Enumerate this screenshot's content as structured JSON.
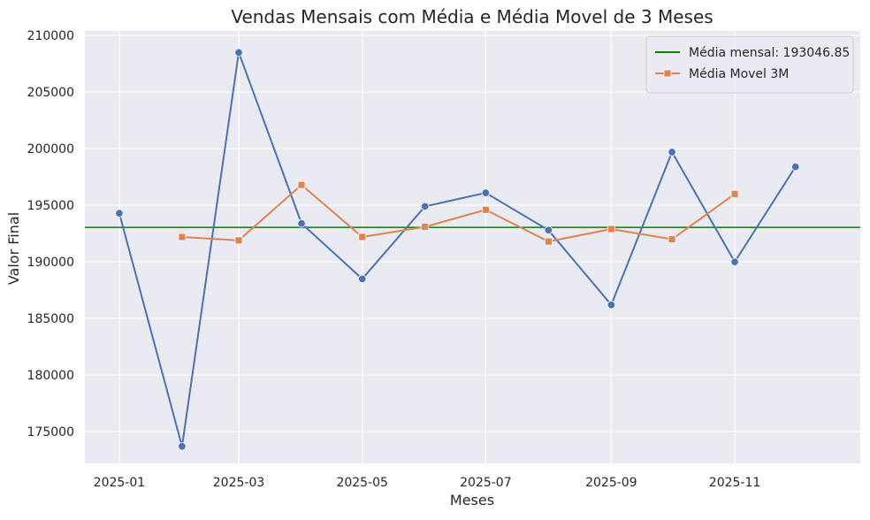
{
  "chart_data": {
    "type": "line",
    "title": "Vendas Mensais com Média e Média Movel de 3 Meses",
    "xlabel": "Meses",
    "ylabel": "Valor Final",
    "x": [
      "2025-01",
      "2025-02",
      "2025-03",
      "2025-04",
      "2025-05",
      "2025-06",
      "2025-07",
      "2025-08",
      "2025-09",
      "2025-10",
      "2025-11",
      "2025-12"
    ],
    "x_ticks": [
      "2025-01",
      "2025-03",
      "2025-05",
      "2025-07",
      "2025-09",
      "2025-11"
    ],
    "y_ticks": [
      175000,
      180000,
      185000,
      190000,
      195000,
      200000,
      205000,
      210000
    ],
    "ylim": [
      172200,
      210400
    ],
    "xlim": [
      "2024-12-15",
      "2026-01-02"
    ],
    "grid": true,
    "legend_position": "top-right",
    "mean_line": {
      "name": "Média mensal: 193046.85",
      "value": 193046.85,
      "color": "#008000"
    },
    "series": [
      {
        "name": "",
        "color": "#4c72b0",
        "marker": "circle",
        "values": [
          194300,
          173700,
          208500,
          193400,
          188500,
          194900,
          196100,
          192800,
          186200,
          199700,
          190000,
          198400
        ]
      },
      {
        "name": "Média Movel 3M",
        "color": "#dd8452",
        "marker": "square",
        "values": [
          null,
          192200,
          191900,
          196800,
          192200,
          193100,
          194600,
          191800,
          192900,
          192000,
          196000,
          null
        ]
      }
    ]
  }
}
